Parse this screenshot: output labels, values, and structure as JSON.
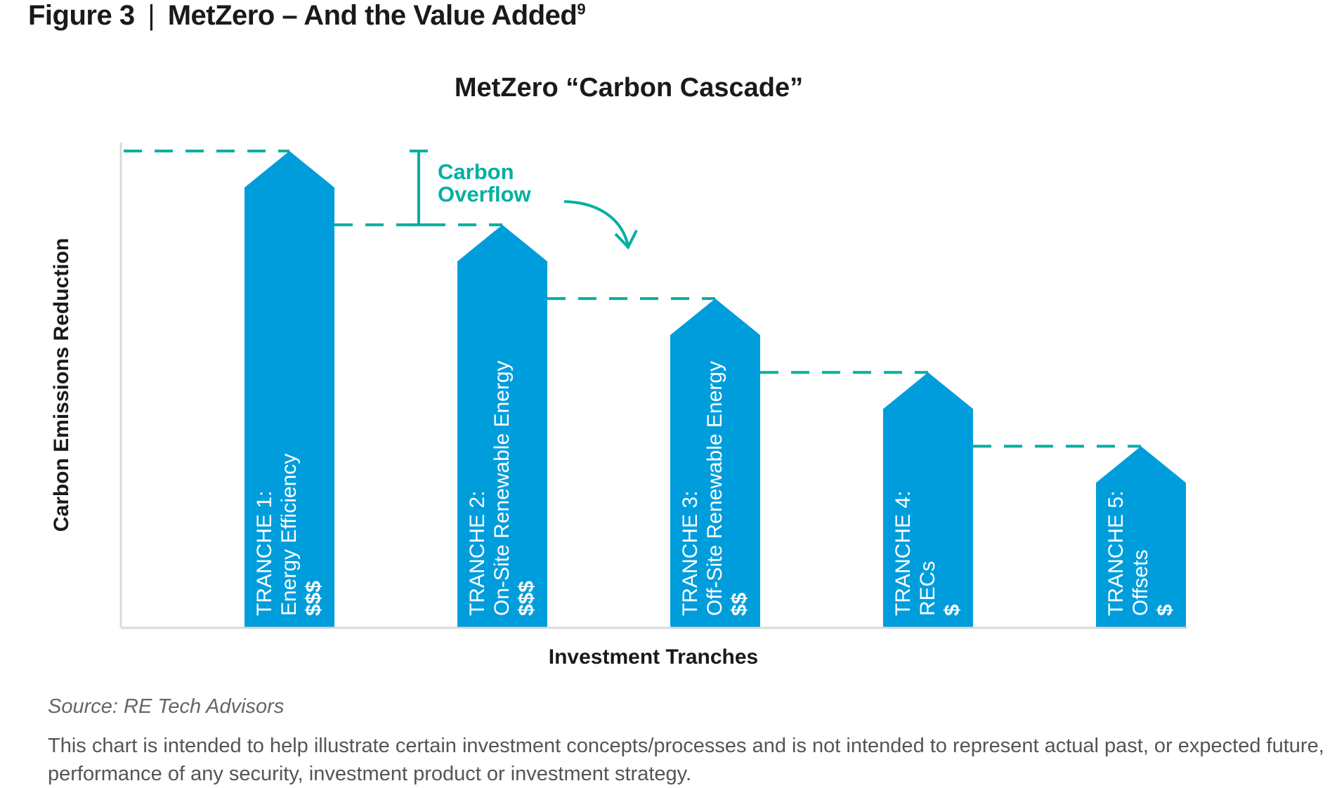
{
  "figure": {
    "label": "Figure 3",
    "separator": "|",
    "title": "MetZero – And the Value Added",
    "footnote_ref": "9"
  },
  "chart_data": {
    "type": "bar",
    "title": "MetZero “Carbon Cascade”",
    "xlabel": "Investment Tranches",
    "ylabel": "Carbon Emissions Reduction",
    "ylim": [
      0,
      100
    ],
    "grid": false,
    "categories": [
      "TRANCHE 1:",
      "TRANCHE 2:",
      "TRANCHE 3:",
      "TRANCHE 4:",
      "TRANCHE 5:"
    ],
    "bars": [
      {
        "tranche": "TRANCHE 1:",
        "name": "Energy Efficiency",
        "cost": "$$$",
        "value": 100
      },
      {
        "tranche": "TRANCHE 2:",
        "name": "On-Site Renewable Energy",
        "cost": "$$$",
        "value": 84.5
      },
      {
        "tranche": "TRANCHE 3:",
        "name": "Off-Site Renewable Energy",
        "cost": "$$",
        "value": 69
      },
      {
        "tranche": "TRANCHE 4:",
        "name": "RECs",
        "cost": "$",
        "value": 53.5
      },
      {
        "tranche": "TRANCHE 5:",
        "name": "Offsets",
        "cost": "$",
        "value": 38
      }
    ],
    "annotation": {
      "line1": "Carbon",
      "line2": "Overflow"
    },
    "colors": {
      "bar": "#009ddc",
      "accent": "#00b0a0",
      "axis": "#d9d9d9",
      "bar_text": "#ffffff"
    }
  },
  "source": "Source: RE Tech Advisors",
  "disclaimer": "This chart is intended to help illustrate certain investment concepts/processes and is not intended to represent actual past, or expected future, performance of any security, investment product or investment strategy."
}
